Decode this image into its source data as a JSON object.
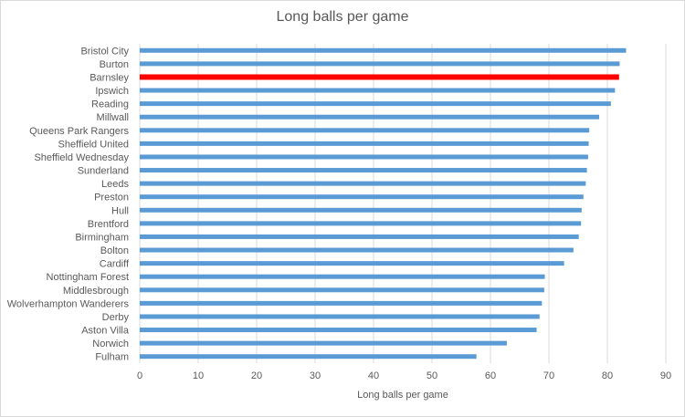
{
  "chart_data": {
    "type": "bar",
    "orientation": "horizontal",
    "title": "Long balls per game",
    "xlabel": "Long balls per game",
    "ylabel": "",
    "xlim": [
      0,
      90
    ],
    "xticks": [
      0,
      10,
      20,
      30,
      40,
      50,
      60,
      70,
      80,
      90
    ],
    "grid": "vertical",
    "legend": "none",
    "bar_color": "#5b9bd5",
    "highlight_color": "#ff0000",
    "highlight_category": "Barnsley",
    "categories": [
      "Bristol City",
      "Burton",
      "Barnsley",
      "Ipswich",
      "Reading",
      "Millwall",
      "Queens Park Rangers",
      "Sheffield United",
      "Sheffield Wednesday",
      "Sunderland",
      "Leeds",
      "Preston",
      "Hull",
      "Brentford",
      "Birmingham",
      "Bolton",
      "Cardiff",
      "Nottingham Forest",
      "Middlesbrough",
      "Wolverhampton Wanderers",
      "Derby",
      "Aston Villa",
      "Norwich",
      "Fulham"
    ],
    "values": [
      83.2,
      82.1,
      82.0,
      81.3,
      80.6,
      78.6,
      76.9,
      76.8,
      76.7,
      76.5,
      76.3,
      75.9,
      75.6,
      75.5,
      75.1,
      74.2,
      72.6,
      69.3,
      69.2,
      68.8,
      68.4,
      67.9,
      62.8,
      57.6
    ]
  }
}
